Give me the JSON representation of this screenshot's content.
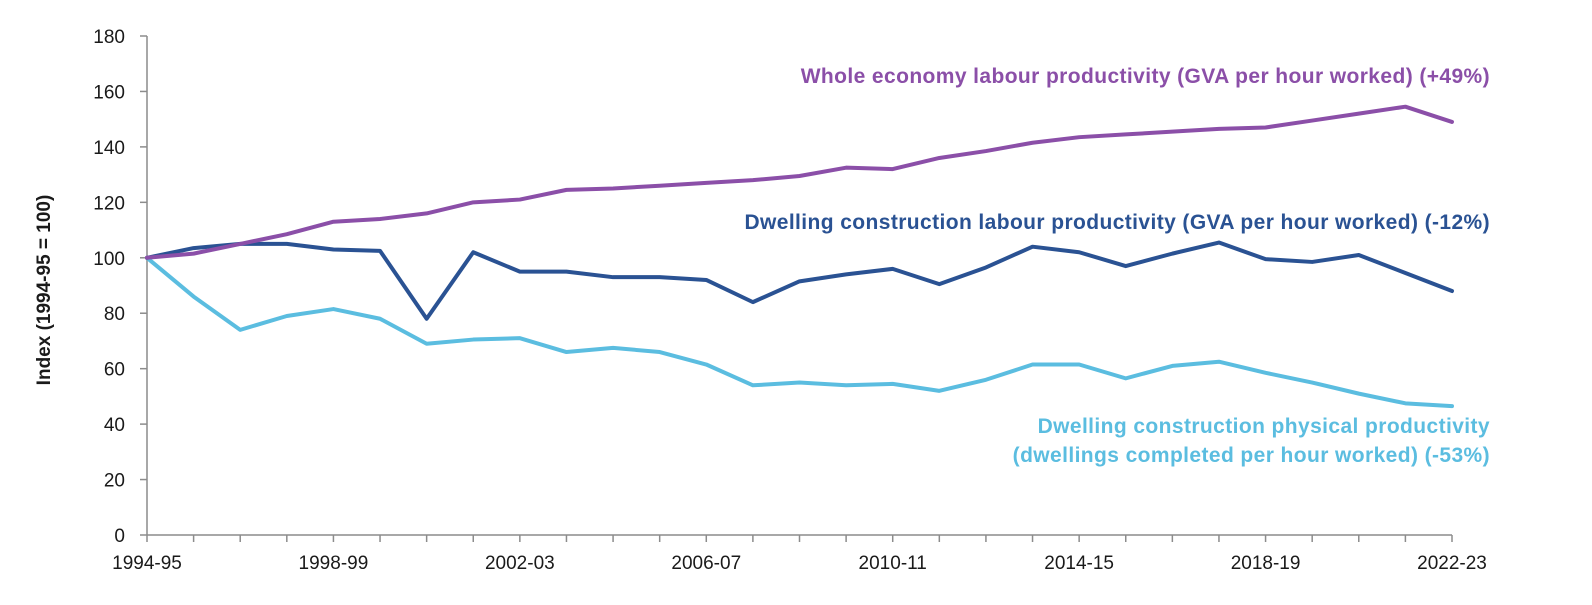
{
  "chart_data": {
    "type": "line",
    "ylabel": "Index (1994-95 = 100)",
    "xlabel": "",
    "ylim": [
      0,
      180
    ],
    "y_ticks": [
      0,
      20,
      40,
      60,
      80,
      100,
      120,
      140,
      160,
      180
    ],
    "x_tick_labels": [
      "1994-95",
      "1998-99",
      "2002-03",
      "2006-07",
      "2010-11",
      "2014-15",
      "2018-19",
      "2022-23"
    ],
    "x": [
      "1994-95",
      "1995-96",
      "1996-97",
      "1997-98",
      "1998-99",
      "1999-00",
      "2000-01",
      "2001-02",
      "2002-03",
      "2003-04",
      "2004-05",
      "2005-06",
      "2006-07",
      "2007-08",
      "2008-09",
      "2009-10",
      "2010-11",
      "2011-12",
      "2012-13",
      "2013-14",
      "2014-15",
      "2015-16",
      "2016-17",
      "2017-18",
      "2018-19",
      "2019-20",
      "2020-21",
      "2021-22",
      "2022-23"
    ],
    "grid": false,
    "series": [
      {
        "key": "whole_economy",
        "label_lines": [
          "Whole economy labour productivity (GVA per hour worked) (+49%)"
        ],
        "color": "#8b4fa8",
        "values": [
          100,
          101.5,
          105,
          108.5,
          113,
          114,
          116,
          120,
          121,
          124.5,
          125,
          126,
          127,
          128,
          129.5,
          132.5,
          132,
          136,
          138.5,
          141.5,
          143.5,
          144.5,
          145.5,
          146.5,
          147,
          149.5,
          152,
          154.5,
          149
        ]
      },
      {
        "key": "dwelling_labour",
        "label_lines": [
          "Dwelling construction labour productivity (GVA per hour worked) (-12%)"
        ],
        "color": "#2a5293",
        "values": [
          100,
          103.5,
          105,
          105,
          103,
          102.5,
          78,
          102,
          95,
          95,
          93,
          93,
          92,
          84,
          91.5,
          94,
          96,
          90.5,
          96.5,
          104,
          102,
          97,
          101.5,
          105.5,
          99.5,
          98.5,
          101,
          94.5,
          88
        ]
      },
      {
        "key": "dwelling_physical",
        "label_lines": [
          "Dwelling construction physical productivity",
          "(dwellings completed per hour worked) (-53%)"
        ],
        "color": "#5bbde0",
        "values": [
          100,
          86,
          74,
          79,
          81.5,
          78,
          69,
          70.5,
          71,
          66,
          67.5,
          66,
          61.5,
          54,
          55,
          54,
          54.5,
          52,
          56,
          61.5,
          61.5,
          56.5,
          61,
          62.5,
          58.5,
          55,
          51,
          47.5,
          46.5
        ]
      }
    ]
  }
}
